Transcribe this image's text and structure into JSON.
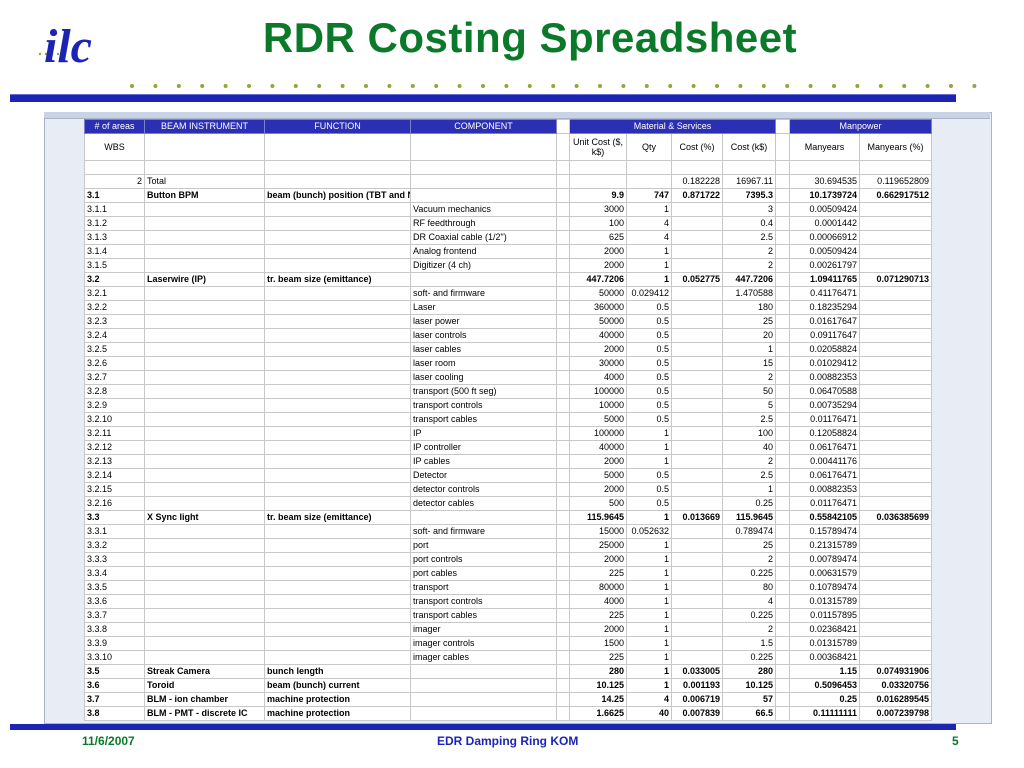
{
  "slide": {
    "title": "RDR Costing Spreadsheet",
    "logo_text": "ilc",
    "footer_date": "11/6/2007",
    "footer_center": "EDR Damping Ring KOM",
    "footer_page": "5",
    "accent_green": "#0a7a2a",
    "accent_blue": "#1c24b4"
  },
  "table": {
    "header": [
      "# of areas",
      "BEAM INSTRUMENT",
      "FUNCTION",
      "COMPONENT",
      "",
      "Material & Services",
      "",
      "Manpower"
    ],
    "subheader": [
      "WBS",
      "",
      "",
      "",
      "",
      "Unit Cost ($, k$)",
      "Qty",
      "Cost (%)",
      "Cost (k$)",
      "",
      "Manyears",
      "Manyears (%)"
    ],
    "rows": [
      {
        "bold": false,
        "cells": [
          "",
          "",
          "",
          "",
          "",
          "",
          "",
          "",
          "",
          "",
          "",
          ""
        ]
      },
      {
        "bold": false,
        "cells": [
          "2",
          "Total",
          "",
          "",
          "",
          "",
          "",
          "0.182228",
          "16967.11",
          "",
          "30.694535",
          "0.119652809"
        ]
      },
      {
        "bold": true,
        "cells": [
          "3.1",
          "Button BPM",
          "beam (bunch) position (TBT and NB)",
          "",
          "",
          "9.9",
          "747",
          "0.871722",
          "7395.3",
          "",
          "10.1739724",
          "0.662917512"
        ]
      },
      {
        "bold": false,
        "cells": [
          "3.1.1",
          "",
          "",
          "Vacuum mechanics",
          "",
          "3000",
          "1",
          "",
          "3",
          "",
          "0.00509424",
          ""
        ]
      },
      {
        "bold": false,
        "cells": [
          "3.1.2",
          "",
          "",
          "RF feedthrough",
          "",
          "100",
          "4",
          "",
          "0.4",
          "",
          "0.0001442",
          ""
        ]
      },
      {
        "bold": false,
        "cells": [
          "3.1.3",
          "",
          "",
          "DR Coaxial cable (1/2\")",
          "",
          "625",
          "4",
          "",
          "2.5",
          "",
          "0.00066912",
          ""
        ]
      },
      {
        "bold": false,
        "cells": [
          "3.1.4",
          "",
          "",
          "Analog frontend",
          "",
          "2000",
          "1",
          "",
          "2",
          "",
          "0.00509424",
          ""
        ]
      },
      {
        "bold": false,
        "cells": [
          "3.1.5",
          "",
          "",
          "Digitizer (4 ch)",
          "",
          "2000",
          "1",
          "",
          "2",
          "",
          "0.00261797",
          ""
        ]
      },
      {
        "bold": true,
        "cells": [
          "3.2",
          "Laserwire (IP)",
          "tr. beam size (emittance)",
          "",
          "",
          "447.7206",
          "1",
          "0.052775",
          "447.7206",
          "",
          "1.09411765",
          "0.071290713"
        ]
      },
      {
        "bold": false,
        "cells": [
          "3.2.1",
          "",
          "",
          "soft- and firmware",
          "",
          "50000",
          "0.029412",
          "",
          "1.470588",
          "",
          "0.41176471",
          ""
        ]
      },
      {
        "bold": false,
        "cells": [
          "3.2.2",
          "",
          "",
          "Laser",
          "",
          "360000",
          "0.5",
          "",
          "180",
          "",
          "0.18235294",
          ""
        ]
      },
      {
        "bold": false,
        "cells": [
          "3.2.3",
          "",
          "",
          "laser power",
          "",
          "50000",
          "0.5",
          "",
          "25",
          "",
          "0.01617647",
          ""
        ]
      },
      {
        "bold": false,
        "cells": [
          "3.2.4",
          "",
          "",
          "laser controls",
          "",
          "40000",
          "0.5",
          "",
          "20",
          "",
          "0.09117647",
          ""
        ]
      },
      {
        "bold": false,
        "cells": [
          "3.2.5",
          "",
          "",
          "laser cables",
          "",
          "2000",
          "0.5",
          "",
          "1",
          "",
          "0.02058824",
          ""
        ]
      },
      {
        "bold": false,
        "cells": [
          "3.2.6",
          "",
          "",
          "laser room",
          "",
          "30000",
          "0.5",
          "",
          "15",
          "",
          "0.01029412",
          ""
        ]
      },
      {
        "bold": false,
        "cells": [
          "3.2.7",
          "",
          "",
          "laser cooling",
          "",
          "4000",
          "0.5",
          "",
          "2",
          "",
          "0.00882353",
          ""
        ]
      },
      {
        "bold": false,
        "cells": [
          "3.2.8",
          "",
          "",
          "transport (500 ft seg)",
          "",
          "100000",
          "0.5",
          "",
          "50",
          "",
          "0.06470588",
          ""
        ]
      },
      {
        "bold": false,
        "cells": [
          "3.2.9",
          "",
          "",
          "transport controls",
          "",
          "10000",
          "0.5",
          "",
          "5",
          "",
          "0.00735294",
          ""
        ]
      },
      {
        "bold": false,
        "cells": [
          "3.2.10",
          "",
          "",
          "transport cables",
          "",
          "5000",
          "0.5",
          "",
          "2.5",
          "",
          "0.01176471",
          ""
        ]
      },
      {
        "bold": false,
        "cells": [
          "3.2.11",
          "",
          "",
          "IP",
          "",
          "100000",
          "1",
          "",
          "100",
          "",
          "0.12058824",
          ""
        ]
      },
      {
        "bold": false,
        "cells": [
          "3.2.12",
          "",
          "",
          "IP controller",
          "",
          "40000",
          "1",
          "",
          "40",
          "",
          "0.06176471",
          ""
        ]
      },
      {
        "bold": false,
        "cells": [
          "3.2.13",
          "",
          "",
          "IP cables",
          "",
          "2000",
          "1",
          "",
          "2",
          "",
          "0.00441176",
          ""
        ]
      },
      {
        "bold": false,
        "cells": [
          "3.2.14",
          "",
          "",
          "Detector",
          "",
          "5000",
          "0.5",
          "",
          "2.5",
          "",
          "0.06176471",
          ""
        ]
      },
      {
        "bold": false,
        "cells": [
          "3.2.15",
          "",
          "",
          "detector controls",
          "",
          "2000",
          "0.5",
          "",
          "1",
          "",
          "0.00882353",
          ""
        ]
      },
      {
        "bold": false,
        "cells": [
          "3.2.16",
          "",
          "",
          "detector cables",
          "",
          "500",
          "0.5",
          "",
          "0.25",
          "",
          "0.01176471",
          ""
        ]
      },
      {
        "bold": true,
        "cells": [
          "3.3",
          "X Sync light",
          "tr. beam size (emittance)",
          "",
          "",
          "115.9645",
          "1",
          "0.013669",
          "115.9645",
          "",
          "0.55842105",
          "0.036385699"
        ]
      },
      {
        "bold": false,
        "cells": [
          "3.3.1",
          "",
          "",
          "soft- and firmware",
          "",
          "15000",
          "0.052632",
          "",
          "0.789474",
          "",
          "0.15789474",
          ""
        ]
      },
      {
        "bold": false,
        "cells": [
          "3.3.2",
          "",
          "",
          "port",
          "",
          "25000",
          "1",
          "",
          "25",
          "",
          "0.21315789",
          ""
        ]
      },
      {
        "bold": false,
        "cells": [
          "3.3.3",
          "",
          "",
          "port controls",
          "",
          "2000",
          "1",
          "",
          "2",
          "",
          "0.00789474",
          ""
        ]
      },
      {
        "bold": false,
        "cells": [
          "3.3.4",
          "",
          "",
          "port cables",
          "",
          "225",
          "1",
          "",
          "0.225",
          "",
          "0.00631579",
          ""
        ]
      },
      {
        "bold": false,
        "cells": [
          "3.3.5",
          "",
          "",
          "transport",
          "",
          "80000",
          "1",
          "",
          "80",
          "",
          "0.10789474",
          ""
        ]
      },
      {
        "bold": false,
        "cells": [
          "3.3.6",
          "",
          "",
          "transport controls",
          "",
          "4000",
          "1",
          "",
          "4",
          "",
          "0.01315789",
          ""
        ]
      },
      {
        "bold": false,
        "cells": [
          "3.3.7",
          "",
          "",
          "transport cables",
          "",
          "225",
          "1",
          "",
          "0.225",
          "",
          "0.01157895",
          ""
        ]
      },
      {
        "bold": false,
        "cells": [
          "3.3.8",
          "",
          "",
          "imager",
          "",
          "2000",
          "1",
          "",
          "2",
          "",
          "0.02368421",
          ""
        ]
      },
      {
        "bold": false,
        "cells": [
          "3.3.9",
          "",
          "",
          "imager controls",
          "",
          "1500",
          "1",
          "",
          "1.5",
          "",
          "0.01315789",
          ""
        ]
      },
      {
        "bold": false,
        "cells": [
          "3.3.10",
          "",
          "",
          "imager cables",
          "",
          "225",
          "1",
          "",
          "0.225",
          "",
          "0.00368421",
          ""
        ]
      },
      {
        "bold": true,
        "cells": [
          "3.5",
          "Streak Camera",
          "bunch length",
          "",
          "",
          "280",
          "1",
          "0.033005",
          "280",
          "",
          "1.15",
          "0.074931906"
        ]
      },
      {
        "bold": true,
        "cells": [
          "3.6",
          "Toroid",
          "beam (bunch) current",
          "",
          "",
          "10.125",
          "1",
          "0.001193",
          "10.125",
          "",
          "0.5096453",
          "0.03320756"
        ]
      },
      {
        "bold": true,
        "cells": [
          "3.7",
          "BLM - ion chamber",
          "machine protection",
          "",
          "",
          "14.25",
          "4",
          "0.006719",
          "57",
          "",
          "0.25",
          "0.016289545"
        ]
      },
      {
        "bold": true,
        "cells": [
          "3.8",
          "BLM - PMT - discrete IC",
          "machine protection",
          "",
          "",
          "1.6625",
          "40",
          "0.007839",
          "66.5",
          "",
          "0.11111111",
          "0.007239798"
        ]
      }
    ]
  }
}
